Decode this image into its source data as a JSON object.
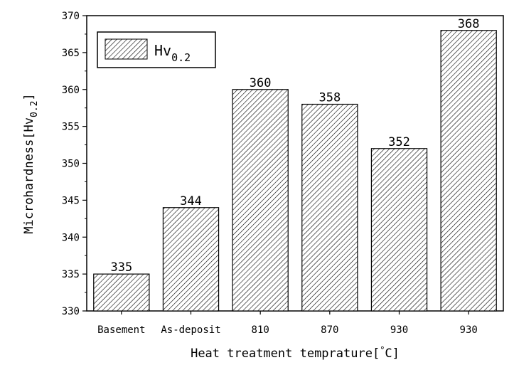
{
  "chart_data": {
    "type": "bar",
    "categories": [
      "Basement",
      "As-deposit",
      "810",
      "870",
      "930",
      "930"
    ],
    "values": [
      335,
      344,
      360,
      358,
      352,
      368
    ],
    "data_labels": [
      "335",
      "344",
      "360",
      "358",
      "352",
      "368"
    ],
    "xlabel_main": "Heat treatment temprature[",
    "xlabel_degree": "°",
    "xlabel_unit": "C]",
    "ylabel_main": "Microhardness[Hv",
    "ylabel_sub": "0.2",
    "ylabel_close": "]",
    "ylim": [
      330,
      370
    ],
    "yticks": [
      330,
      335,
      340,
      345,
      350,
      355,
      360,
      365,
      370
    ],
    "legend": {
      "position": "top-left",
      "label_main": "Hv",
      "label_sub": "0.2"
    },
    "bar_fill": "hatched-diagonal",
    "grid": false
  }
}
